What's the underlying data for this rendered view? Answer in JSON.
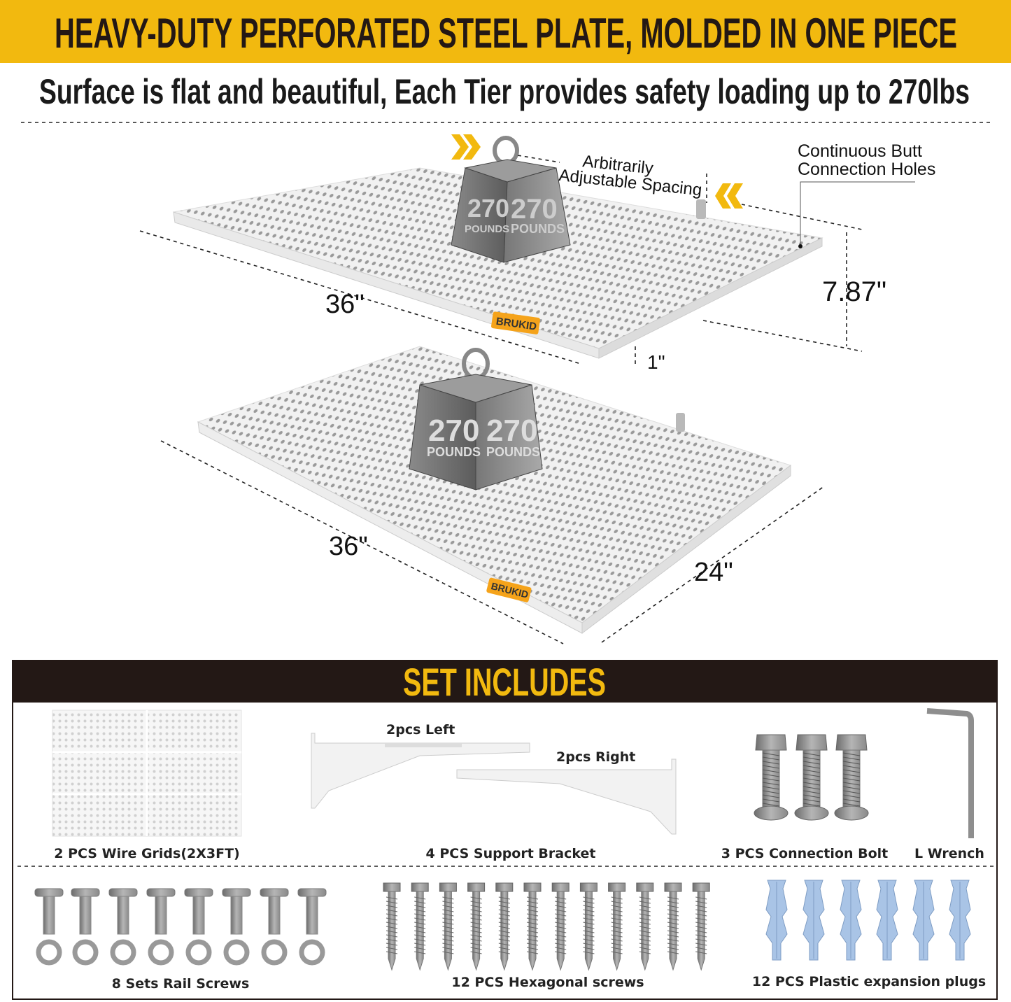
{
  "colors": {
    "accent_yellow": "#f2b90f",
    "dark_bar": "#231815",
    "plug_blue": "#a9c4e6",
    "brand_orange": "#f5a31a"
  },
  "header": {
    "title": "HEAVY-DUTY PERFORATED STEEL PLATE, MOLDED IN ONE PIECE"
  },
  "subtitle": "Surface is flat and beautiful, Each Tier provides safety loading up to 270lbs",
  "top_shelf": {
    "annotation_spacing_line1": "Arbitrarily",
    "annotation_spacing_line2": "Adjustable Spacing",
    "annotation_holes_line1": "Continuous Butt",
    "annotation_holes_line2": "Connection Holes",
    "length": "36\"",
    "height": "7.87\"",
    "thickness": "1\""
  },
  "bottom_shelf": {
    "length": "36\"",
    "depth": "24\""
  },
  "weight": {
    "value": "270",
    "unit": "POUNDS"
  },
  "brand": "BRUKID",
  "set_includes": {
    "title": "SET INCLUDES",
    "items": [
      {
        "label": "2 PCS Wire Grids(2X3FT)"
      },
      {
        "label": "4 PCS Support Bracket"
      },
      {
        "label": "3 PCS Connection Bolt"
      },
      {
        "label": "L Wrench"
      },
      {
        "label": "8 Sets Rail Screws"
      },
      {
        "label": "12 PCS Hexagonal screws"
      },
      {
        "label": "12 PCS Plastic expansion plugs"
      }
    ],
    "bracket_left_label": "2pcs Left",
    "bracket_right_label": "2pcs Right"
  }
}
